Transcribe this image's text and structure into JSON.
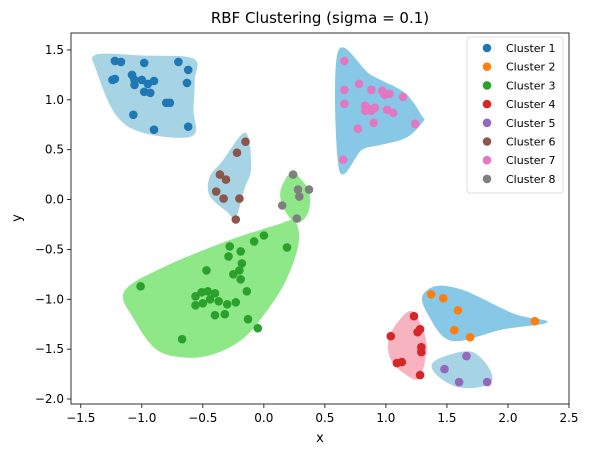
{
  "chart_data": {
    "type": "scatter",
    "title": "RBF Clustering (sigma = 0.1)",
    "xlabel": "x",
    "ylabel": "y",
    "xlim": [
      -1.58,
      2.5
    ],
    "ylim": [
      -2.05,
      1.67
    ],
    "grid": false,
    "legend_position": "top-right",
    "xticks": [
      -1.5,
      -1.0,
      -0.5,
      0.0,
      0.5,
      1.0,
      1.5,
      2.0,
      2.5
    ],
    "xtick_labels": [
      "−1.5",
      "−1.0",
      "−0.5",
      "0.0",
      "0.5",
      "1.0",
      "1.5",
      "2.0",
      "2.5"
    ],
    "yticks": [
      1.5,
      1.0,
      0.5,
      0.0,
      -0.5,
      -1.0,
      -1.5,
      -2.0
    ],
    "ytick_labels": [
      "1.5",
      "1.0",
      "0.5",
      "0.0",
      "−0.5",
      "−1.0",
      "−1.5",
      "−2.0"
    ],
    "regions": [
      {
        "cluster": "Cluster 1",
        "color": "#a6d4e4",
        "polygon": [
          [
            -1.37,
            1.45
          ],
          [
            -0.99,
            1.44
          ],
          [
            -0.58,
            1.41
          ],
          [
            -0.57,
            1.2
          ],
          [
            -0.58,
            0.9
          ],
          [
            -0.59,
            0.64
          ],
          [
            -0.98,
            0.67
          ],
          [
            -1.21,
            0.85
          ],
          [
            -1.37,
            1.3
          ]
        ]
      },
      {
        "cluster": "Cluster 7",
        "color": "#86c8e6",
        "polygon": [
          [
            0.61,
            1.48
          ],
          [
            0.87,
            1.25
          ],
          [
            1.15,
            1.07
          ],
          [
            1.29,
            0.84
          ],
          [
            1.3,
            0.78
          ],
          [
            1.16,
            0.62
          ],
          [
            0.95,
            0.55
          ],
          [
            0.8,
            0.5
          ],
          [
            0.62,
            0.3
          ]
        ]
      },
      {
        "cluster": "Cluster 6",
        "color": "#a6d4e4",
        "polygon": [
          [
            -0.17,
            0.66
          ],
          [
            -0.12,
            0.55
          ],
          [
            -0.11,
            0.28
          ],
          [
            -0.16,
            0.12
          ],
          [
            -0.23,
            -0.17
          ],
          [
            -0.3,
            -0.12
          ],
          [
            -0.44,
            0.04
          ],
          [
            -0.44,
            0.23
          ],
          [
            -0.34,
            0.38
          ]
        ]
      },
      {
        "cluster": "Cluster 8",
        "color": "#8fe888",
        "polygon": [
          [
            0.23,
            0.28
          ],
          [
            0.3,
            0.2
          ],
          [
            0.37,
            0.08
          ],
          [
            0.36,
            -0.13
          ],
          [
            0.27,
            -0.23
          ],
          [
            0.17,
            -0.1
          ],
          [
            0.14,
            0.09
          ]
        ]
      },
      {
        "cluster": "Cluster 3",
        "color": "#8fe888",
        "polygon": [
          [
            0.25,
            -0.22
          ],
          [
            0.28,
            -0.45
          ],
          [
            0.17,
            -0.83
          ],
          [
            0.0,
            -1.15
          ],
          [
            -0.18,
            -1.4
          ],
          [
            -0.42,
            -1.55
          ],
          [
            -0.65,
            -1.58
          ],
          [
            -0.88,
            -1.5
          ],
          [
            -1.06,
            -1.2
          ],
          [
            -1.14,
            -0.92
          ],
          [
            -0.8,
            -0.67
          ],
          [
            -0.3,
            -0.42
          ],
          [
            0.1,
            -0.26
          ]
        ]
      },
      {
        "cluster": "Cluster 2",
        "color": "#86c8e6",
        "polygon": [
          [
            1.42,
            -0.87
          ],
          [
            1.65,
            -0.92
          ],
          [
            2.05,
            -1.15
          ],
          [
            2.32,
            -1.23
          ],
          [
            1.95,
            -1.3
          ],
          [
            1.63,
            -1.41
          ],
          [
            1.48,
            -1.38
          ],
          [
            1.36,
            -1.18
          ],
          [
            1.3,
            -0.98
          ]
        ]
      },
      {
        "cluster": "Cluster 4",
        "color": "#f8b3c1",
        "polygon": [
          [
            1.2,
            -1.12
          ],
          [
            1.28,
            -1.25
          ],
          [
            1.33,
            -1.45
          ],
          [
            1.31,
            -1.66
          ],
          [
            1.26,
            -1.8
          ],
          [
            1.15,
            -1.74
          ],
          [
            1.05,
            -1.62
          ],
          [
            1.02,
            -1.45
          ],
          [
            1.07,
            -1.28
          ]
        ]
      },
      {
        "cluster": "Cluster 5",
        "color": "#a6d4e4",
        "polygon": [
          [
            1.7,
            -1.53
          ],
          [
            1.82,
            -1.65
          ],
          [
            1.87,
            -1.8
          ],
          [
            1.8,
            -1.87
          ],
          [
            1.6,
            -1.88
          ],
          [
            1.44,
            -1.78
          ],
          [
            1.38,
            -1.65
          ],
          [
            1.52,
            -1.56
          ]
        ]
      }
    ],
    "series": [
      {
        "name": "Cluster 1",
        "color": "#1f77b4",
        "points": [
          [
            -1.22,
            1.39
          ],
          [
            -1.17,
            1.38
          ],
          [
            -0.98,
            1.37
          ],
          [
            -1.0,
            1.2
          ],
          [
            -0.95,
            1.16
          ],
          [
            -1.24,
            1.2
          ],
          [
            -1.22,
            1.21
          ],
          [
            -1.06,
            1.2
          ],
          [
            -1.08,
            1.25
          ],
          [
            -1.06,
            1.15
          ],
          [
            -0.9,
            1.19
          ],
          [
            -0.93,
            1.07
          ],
          [
            -0.98,
            1.08
          ],
          [
            -0.8,
            0.97
          ],
          [
            -0.77,
            0.97
          ],
          [
            -0.7,
            1.38
          ],
          [
            -0.62,
            1.3
          ],
          [
            -0.63,
            1.17
          ],
          [
            -1.07,
            0.85
          ],
          [
            -0.9,
            0.7
          ],
          [
            -0.62,
            0.73
          ]
        ]
      },
      {
        "name": "Cluster 2",
        "color": "#ff7f0e",
        "points": [
          [
            1.37,
            -0.95
          ],
          [
            1.47,
            -0.99
          ],
          [
            1.59,
            -1.11
          ],
          [
            1.56,
            -1.31
          ],
          [
            1.69,
            -1.38
          ],
          [
            2.22,
            -1.22
          ]
        ]
      },
      {
        "name": "Cluster 3",
        "color": "#2ca02c",
        "points": [
          [
            0.0,
            -0.36
          ],
          [
            -0.08,
            -0.42
          ],
          [
            -0.28,
            -0.47
          ],
          [
            -0.19,
            -0.52
          ],
          [
            -0.29,
            -0.57
          ],
          [
            -0.18,
            -0.64
          ],
          [
            -0.2,
            -0.71
          ],
          [
            -0.25,
            -0.75
          ],
          [
            -0.47,
            -0.71
          ],
          [
            -0.19,
            -0.8
          ],
          [
            -0.4,
            -0.94
          ],
          [
            -0.46,
            -0.92
          ],
          [
            -0.51,
            -0.93
          ],
          [
            -0.56,
            -0.97
          ],
          [
            -0.44,
            -1.0
          ],
          [
            -0.5,
            -1.04
          ],
          [
            -0.56,
            -1.06
          ],
          [
            -0.37,
            -1.02
          ],
          [
            -0.3,
            -1.05
          ],
          [
            -0.23,
            -1.03
          ],
          [
            -0.14,
            -0.92
          ],
          [
            -0.13,
            -1.2
          ],
          [
            -0.4,
            -1.16
          ],
          [
            -0.32,
            -1.15
          ],
          [
            -0.05,
            -1.29
          ],
          [
            -1.01,
            -0.87
          ],
          [
            0.19,
            -0.48
          ],
          [
            -0.67,
            -1.4
          ]
        ]
      },
      {
        "name": "Cluster 4",
        "color": "#d62728",
        "points": [
          [
            1.23,
            -1.17
          ],
          [
            1.04,
            -1.37
          ],
          [
            1.28,
            -1.3
          ],
          [
            1.26,
            -1.33
          ],
          [
            1.29,
            -1.48
          ],
          [
            1.29,
            -1.53
          ],
          [
            1.13,
            -1.63
          ],
          [
            1.09,
            -1.64
          ],
          [
            1.28,
            -1.76
          ]
        ]
      },
      {
        "name": "Cluster 5",
        "color": "#9467bd",
        "points": [
          [
            1.66,
            -1.57
          ],
          [
            1.48,
            -1.7
          ],
          [
            1.6,
            -1.83
          ],
          [
            1.83,
            -1.83
          ]
        ]
      },
      {
        "name": "Cluster 6",
        "color": "#8c564b",
        "points": [
          [
            -0.15,
            0.58
          ],
          [
            -0.22,
            0.47
          ],
          [
            -0.36,
            0.25
          ],
          [
            -0.31,
            0.2
          ],
          [
            -0.39,
            0.08
          ],
          [
            -0.33,
            0.01
          ],
          [
            -0.2,
            0.01
          ],
          [
            -0.23,
            -0.2
          ]
        ]
      },
      {
        "name": "Cluster 7",
        "color": "#e377c2",
        "points": [
          [
            0.66,
            1.39
          ],
          [
            0.78,
            1.16
          ],
          [
            0.66,
            1.1
          ],
          [
            0.88,
            1.1
          ],
          [
            0.97,
            1.09
          ],
          [
            0.99,
            1.05
          ],
          [
            1.03,
            1.06
          ],
          [
            0.66,
            0.96
          ],
          [
            0.83,
            0.94
          ],
          [
            0.86,
            0.91
          ],
          [
            0.88,
            0.89
          ],
          [
            0.83,
            0.89
          ],
          [
            0.91,
            0.92
          ],
          [
            1.01,
            0.9
          ],
          [
            1.06,
            0.87
          ],
          [
            1.14,
            1.03
          ],
          [
            0.77,
            0.71
          ],
          [
            0.9,
            0.77
          ],
          [
            1.24,
            0.76
          ],
          [
            0.65,
            0.4
          ]
        ]
      },
      {
        "name": "Cluster 8",
        "color": "#7f7f7f",
        "points": [
          [
            0.24,
            0.25
          ],
          [
            0.28,
            0.1
          ],
          [
            0.37,
            0.1
          ],
          [
            0.29,
            0.03
          ],
          [
            0.15,
            -0.06
          ],
          [
            0.27,
            -0.19
          ]
        ]
      }
    ]
  }
}
